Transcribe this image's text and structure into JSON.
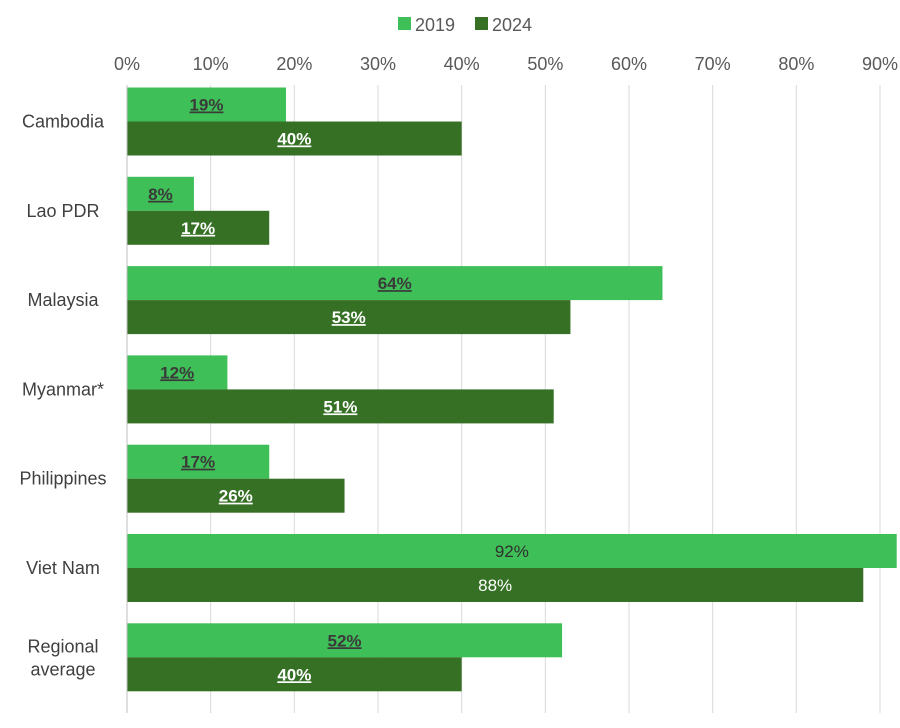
{
  "chart_data": {
    "type": "bar",
    "orientation": "horizontal",
    "title": "",
    "xlabel": "",
    "ylabel": "",
    "xlim": [
      0,
      90
    ],
    "x_ticks": [
      "0%",
      "10%",
      "20%",
      "30%",
      "40%",
      "50%",
      "60%",
      "70%",
      "80%",
      "90%"
    ],
    "categories": [
      "Cambodia",
      "Lao PDR",
      "Malaysia",
      "Myanmar*",
      "Philippines",
      "Viet Nam",
      "Regional average"
    ],
    "series": [
      {
        "name": "2019",
        "color": "#3fbf57",
        "values": [
          19,
          8,
          64,
          12,
          17,
          92,
          52
        ],
        "labels": [
          "19%",
          "8%",
          "64%",
          "12%",
          "17%",
          "92%",
          "52%"
        ]
      },
      {
        "name": "2024",
        "color": "#357024",
        "values": [
          40,
          17,
          53,
          51,
          26,
          88,
          40
        ],
        "labels": [
          "40%",
          "17%",
          "53%",
          "51%",
          "26%",
          "88%",
          "40%"
        ]
      }
    ],
    "label_underlined": [
      true,
      true,
      true,
      true,
      true,
      false,
      true
    ],
    "gridlines": true,
    "legend_position": "top"
  }
}
